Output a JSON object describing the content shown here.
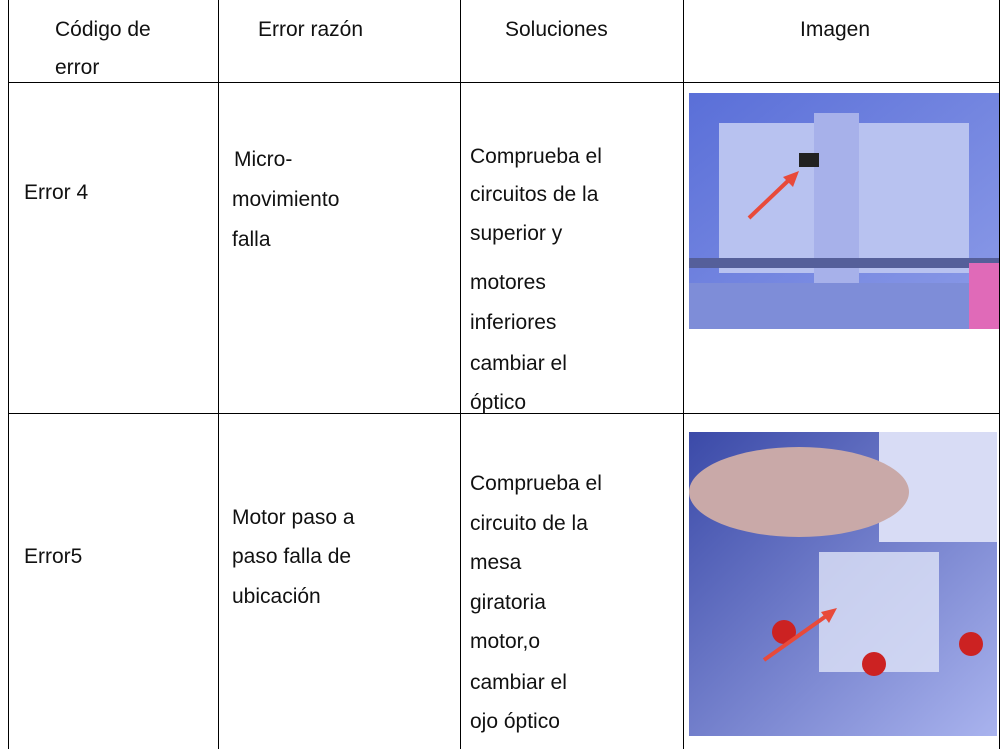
{
  "table": {
    "header": [
      [
        "Código de",
        "error"
      ],
      [
        "Error razón"
      ],
      [
        "Soluciones"
      ],
      [
        "Imagen"
      ]
    ],
    "rows": [
      {
        "code": [
          "Error 4"
        ],
        "reason": [
          "Micro-",
          "movimiento",
          "falla"
        ],
        "solution": [
          "Comprueba el",
          "circuitos de la",
          "superior y",
          "motores",
          "inferiores",
          "cambiar el",
          "óptico"
        ]
      },
      {
        "code": [
          "Error5"
        ],
        "reason": [
          "Motor paso a",
          "paso falla de",
          "ubicación"
        ],
        "solution": [
          "Comprueba el",
          "circuito de la",
          "mesa",
          "giratoria",
          "motor,o",
          "cambiar el",
          "ojo óptico"
        ]
      }
    ]
  }
}
